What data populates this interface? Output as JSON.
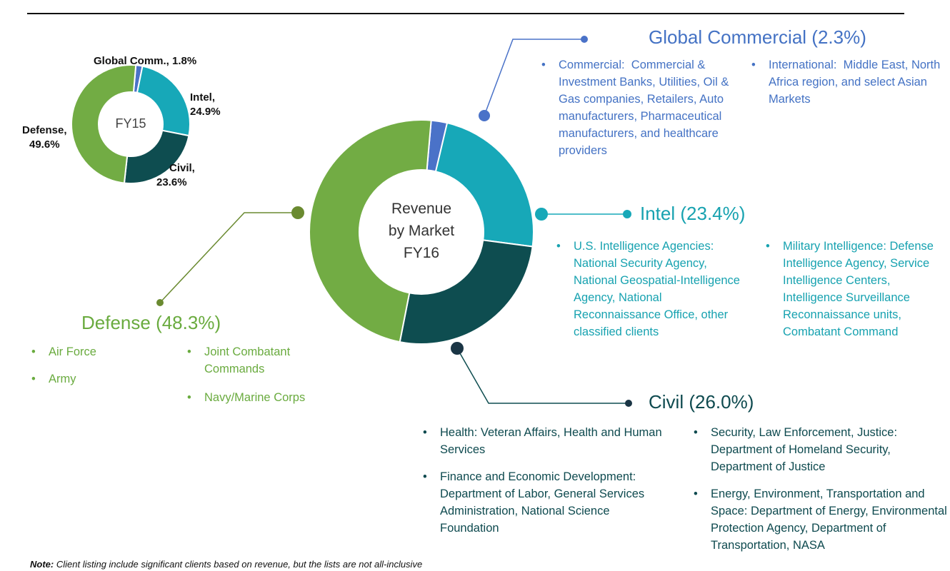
{
  "colors": {
    "global": "#4a72c8",
    "intel": "#17a8b8",
    "civil": "#0e4d50",
    "defense": "#72ac44"
  },
  "chart_data": [
    {
      "type": "pie",
      "title": "FY15",
      "categories": [
        "Global Comm.",
        "Intel",
        "Civil",
        "Defense"
      ],
      "values": [
        1.8,
        24.9,
        23.6,
        49.6
      ],
      "labels": [
        "Global Comm., 1.8%",
        "Intel,",
        "24.9%",
        "Civil,",
        "23.6%",
        "Defense,",
        "49.6%"
      ]
    },
    {
      "type": "pie",
      "title": "Revenue by Market FY16",
      "center_lines": [
        "Revenue",
        "by Market",
        "FY16"
      ],
      "categories": [
        "Global Commercial",
        "Intel",
        "Civil",
        "Defense"
      ],
      "values": [
        2.3,
        23.4,
        26.0,
        48.3
      ]
    }
  ],
  "global": {
    "heading": "Global Commercial (2.3%)",
    "commercial": {
      "key": "Commercial:",
      "text": "Commercial & Investment Banks, Utilities, Oil & Gas companies, Retailers, Auto manufacturers, Pharmaceutical manufacturers, and healthcare providers"
    },
    "international": {
      "key": "International:",
      "text": "Middle East, North Africa region, and select Asian Markets"
    }
  },
  "intel": {
    "heading": "Intel (23.4%)",
    "us": {
      "key": "U.S. Intelligence Agencies:",
      "text": "National Security Agency, National Geospatial-Intelligence Agency, National Reconnaissance Office, other classified clients"
    },
    "military": {
      "key": "Military Intelligence",
      "colon": ":",
      "text": "Defense Intelligence Agency, Service Intelligence Centers, Intelligence Surveillance Reconnaissance units, Combatant Command"
    }
  },
  "defense": {
    "heading": "Defense (48.3%)",
    "items": [
      "Air Force",
      "Army",
      "Joint Combatant Commands",
      "Navy/Marine Corps"
    ]
  },
  "civil": {
    "heading": "Civil (26.0%)",
    "health": {
      "key": "Health:",
      "text": "Veteran Affairs, Health and Human Services"
    },
    "finance": {
      "key": "Finance and Economic Development:",
      "text": "Department of Labor, General Services Administration, National Science Foundation"
    },
    "security": {
      "key": "Security, Law Enforcement, Justice",
      "colon": ":",
      "text": "Department of Homeland Security, Department of Justice"
    },
    "energy": {
      "key": "Energy, Environment, Transportation and Space:",
      "text": "Department of Energy, Environmental Protection Agency, Department of Transportation, NASA"
    }
  },
  "note": {
    "key": "Note:",
    "text": "Client listing include significant clients based on revenue, but the lists are not all-inclusive"
  }
}
